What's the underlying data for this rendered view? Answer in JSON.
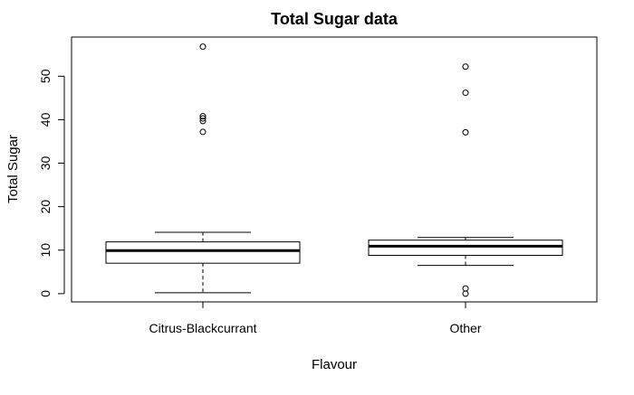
{
  "chart_data": {
    "type": "boxplot",
    "title": "Total Sugar data",
    "xlabel": "Flavour",
    "ylabel": "Total Sugar",
    "categories": [
      "Citrus-Blackcurrant",
      "Other"
    ],
    "ylim": [
      -1.9,
      59
    ],
    "yticks": [
      "0",
      "10",
      "20",
      "30",
      "40",
      "50"
    ],
    "grid": false,
    "boxes": [
      {
        "category": "Citrus-Blackcurrant",
        "whisker_low": 0.2,
        "q1": 7.0,
        "median": 9.9,
        "q3": 11.9,
        "whisker_high": 14.1,
        "outliers": [
          37.2,
          39.7,
          40.3,
          40.8,
          56.8
        ]
      },
      {
        "category": "Other",
        "whisker_low": 6.5,
        "q1": 8.8,
        "median": 10.9,
        "q3": 12.3,
        "whisker_high": 12.9,
        "outliers": [
          0.0,
          1.2,
          37.1,
          46.2,
          52.2
        ]
      }
    ],
    "colors": {
      "stroke": "#000000",
      "background": "#ffffff"
    }
  }
}
